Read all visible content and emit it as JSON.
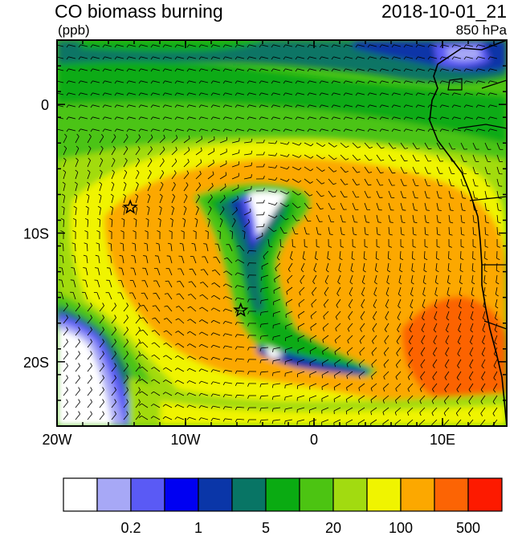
{
  "header": {
    "title": "CO biomass burning",
    "datetime": "2018-10-01_21",
    "units": "(ppb)",
    "level": "850 hPa"
  },
  "map": {
    "lon_range": [
      -20,
      15
    ],
    "lat_range": [
      -25,
      5
    ],
    "x_ticks": [
      {
        "lon": -20,
        "label": "20W"
      },
      {
        "lon": -10,
        "label": "10W"
      },
      {
        "lon": 0,
        "label": "0"
      },
      {
        "lon": 10,
        "label": "10E"
      }
    ],
    "y_ticks": [
      {
        "lat": 0,
        "label": "0"
      },
      {
        "lat": -10,
        "label": "10S"
      },
      {
        "lat": -20,
        "label": "20S"
      }
    ],
    "markers": [
      {
        "name": "site-star-west",
        "lon": -14.3,
        "lat": -8.0
      },
      {
        "name": "site-star-central",
        "lon": -5.7,
        "lat": -16.0
      }
    ]
  },
  "colorbar": {
    "colors": [
      "#ffffff",
      "#a7a8f6",
      "#5a5af5",
      "#0000f2",
      "#0a36a8",
      "#087565",
      "#0aab12",
      "#4cc412",
      "#a2db10",
      "#f0f400",
      "#fca800",
      "#fc6404",
      "#fd1a00"
    ],
    "labels": [
      {
        "boundary": 2,
        "text": "0.2"
      },
      {
        "boundary": 4,
        "text": "1"
      },
      {
        "boundary": 6,
        "text": "5"
      },
      {
        "boundary": 8,
        "text": "20"
      },
      {
        "boundary": 10,
        "text": "100"
      },
      {
        "boundary": 12,
        "text": "500"
      }
    ]
  }
}
